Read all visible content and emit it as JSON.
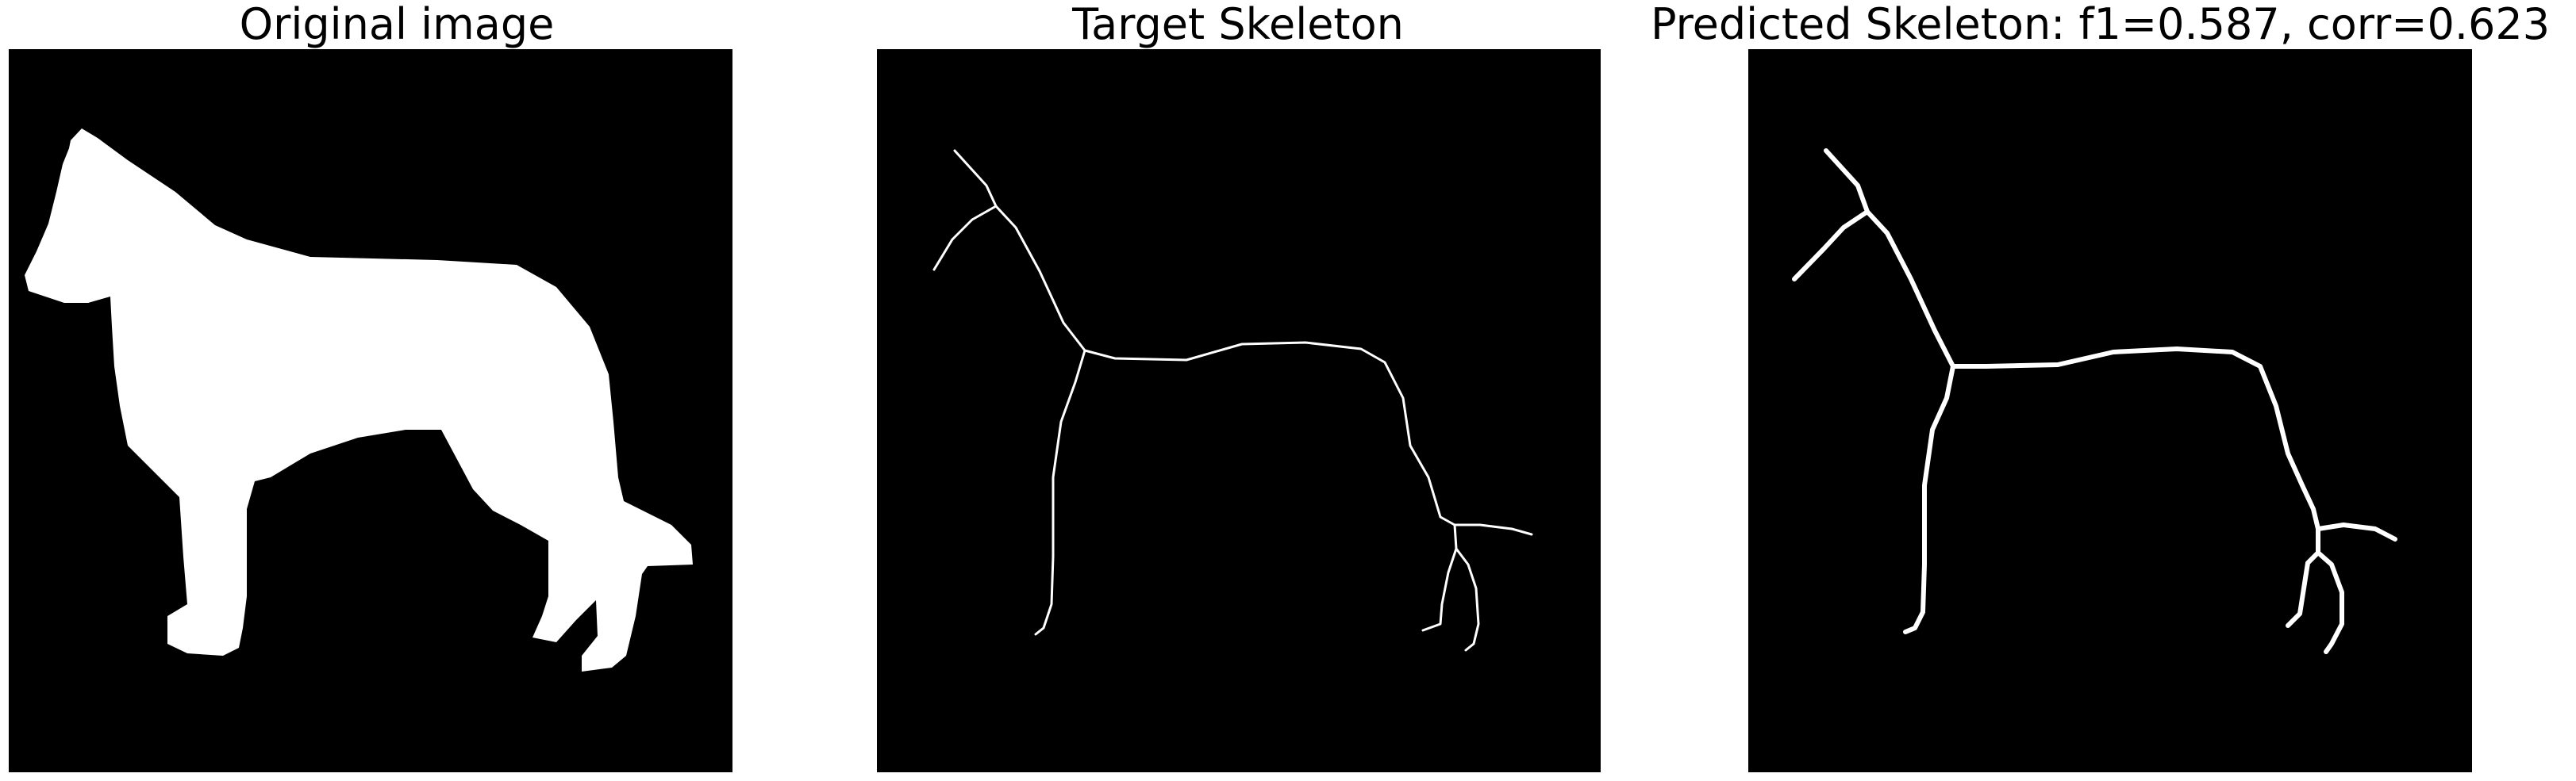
{
  "panels": [
    {
      "title": "Original image"
    },
    {
      "title": "Target Skeleton"
    },
    {
      "title": "Predicted Skeleton: f1=0.587, corr=0.623"
    }
  ],
  "colors": {
    "background": "#000000",
    "foreground": "#ffffff"
  }
}
